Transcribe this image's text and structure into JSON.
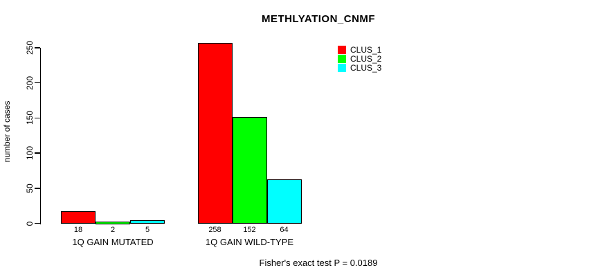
{
  "title": "METHLYATION_CNMF",
  "annotation": "Fisher's exact test P = 0.0189",
  "chart_data": {
    "type": "bar",
    "title": "METHLYATION_CNMF",
    "xlabel": "",
    "ylabel": "number of cases",
    "ylim": [
      0,
      250
    ],
    "yticks": [
      0,
      50,
      100,
      150,
      200,
      250
    ],
    "grid": false,
    "legend_position": "top-right",
    "bar_value_labels_shown": true,
    "categories": [
      "1Q GAIN MUTATED",
      "1Q GAIN WILD-TYPE"
    ],
    "series": [
      {
        "name": "CLUS_1",
        "color": "#ff0000",
        "values": [
          18,
          258
        ]
      },
      {
        "name": "CLUS_2",
        "color": "#00ff00",
        "values": [
          2,
          152
        ]
      },
      {
        "name": "CLUS_3",
        "color": "#00ffff",
        "values": [
          5,
          64
        ]
      }
    ],
    "annotation": "Fisher's exact test P = 0.0189",
    "colors": {
      "axis": "#000000",
      "background": "#ffffff",
      "text": "#000000"
    }
  }
}
